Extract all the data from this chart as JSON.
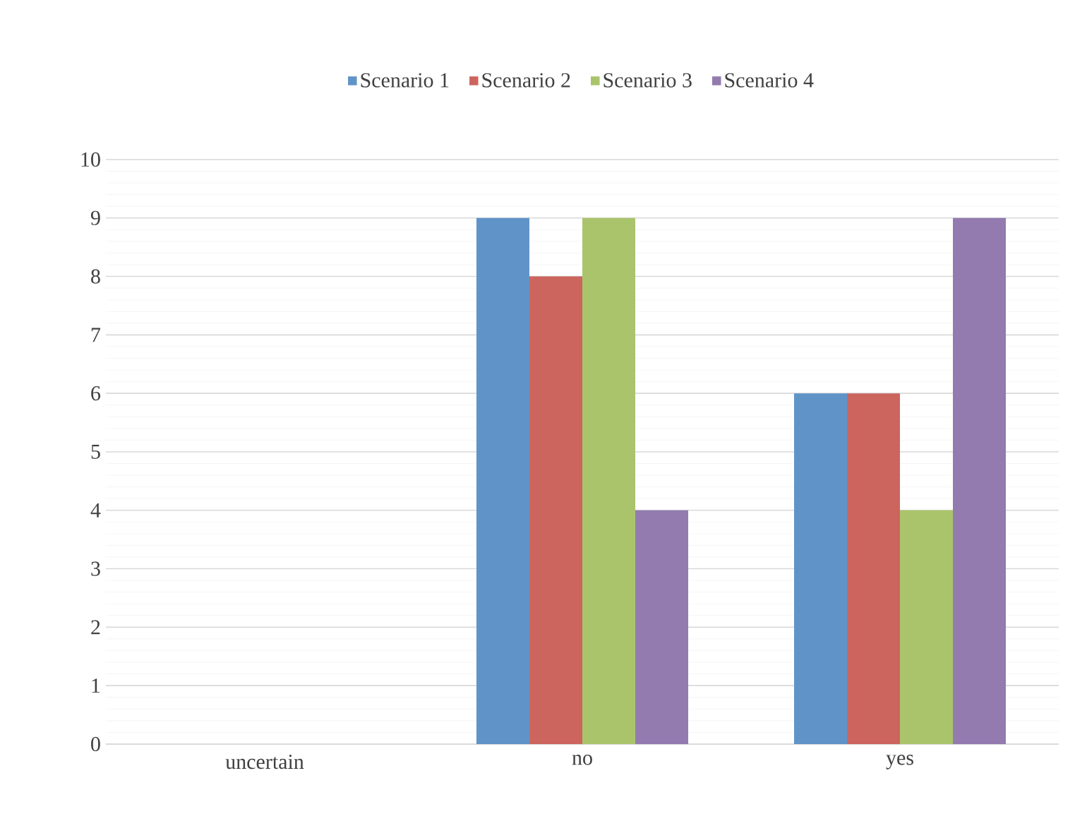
{
  "chart_data": {
    "type": "bar",
    "categories": [
      "uncertain",
      "no",
      "yes"
    ],
    "series": [
      {
        "name": "Scenario 1",
        "color": "#6094c8",
        "values": [
          0,
          9,
          6
        ]
      },
      {
        "name": "Scenario 2",
        "color": "#cc655e",
        "values": [
          0,
          8,
          6
        ]
      },
      {
        "name": "Scenario 3",
        "color": "#aac46c",
        "values": [
          0,
          9,
          4
        ]
      },
      {
        "name": "Scenario 4",
        "color": "#937bb0",
        "values": [
          0,
          4,
          9
        ]
      }
    ],
    "ylim": [
      0,
      10
    ],
    "yticks": [
      0,
      1,
      2,
      3,
      4,
      5,
      6,
      7,
      8,
      9,
      10
    ],
    "grid": "y",
    "legend": "top"
  }
}
